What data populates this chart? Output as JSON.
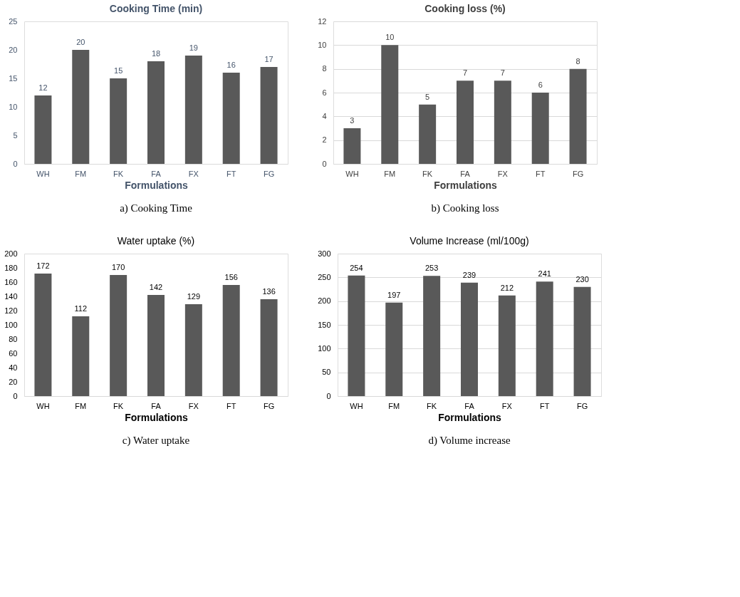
{
  "chart_data": [
    {
      "type": "bar",
      "title": "Cooking Time (min)",
      "xlabel": "Formulations",
      "categories": [
        "WH",
        "FM",
        "FK",
        "FA",
        "FX",
        "FT",
        "FG"
      ],
      "values": [
        12,
        20,
        15,
        18,
        19,
        16,
        17
      ],
      "color": "#595959",
      "ylim": [
        0,
        25
      ],
      "yticks": [
        0,
        5,
        10,
        15,
        20,
        25
      ],
      "grid": false,
      "data_labels": true,
      "annotations": [
        "a)    Cooking Time"
      ]
    },
    {
      "type": "bar",
      "title": "Cooking loss (%)",
      "xlabel": "Formulations",
      "categories": [
        "WH",
        "FM",
        "FK",
        "FA",
        "FX",
        "FT",
        "FG"
      ],
      "values": [
        3,
        10,
        5,
        7,
        7,
        6,
        8
      ],
      "color": "#595959",
      "ylim": [
        0,
        12
      ],
      "yticks": [
        0,
        2,
        4,
        6,
        8,
        10,
        12
      ],
      "grid": "y",
      "data_labels": true,
      "annotations": [
        "b) Cooking loss"
      ]
    },
    {
      "type": "bar",
      "title": "Water uptake (%)",
      "xlabel": "Formulations",
      "categories": [
        "WH",
        "FM",
        "FK",
        "FA",
        "FX",
        "FT",
        "FG"
      ],
      "values": [
        172,
        112,
        170,
        142,
        129,
        156,
        136
      ],
      "color": "#595959",
      "ylim": [
        0,
        200
      ],
      "yticks": [
        0,
        20,
        40,
        60,
        80,
        100,
        120,
        140,
        160,
        180,
        200
      ],
      "grid": false,
      "data_labels": true,
      "annotations": [
        "c) Water uptake"
      ]
    },
    {
      "type": "bar",
      "title": "Volume Increase (ml/100g)",
      "xlabel": "Formulations",
      "categories": [
        "WH",
        "FM",
        "FK",
        "FA",
        "FX",
        "FT",
        "FG"
      ],
      "values": [
        254,
        197,
        253,
        239,
        212,
        241,
        230
      ],
      "color": "#595959",
      "ylim": [
        0,
        300
      ],
      "yticks": [
        0,
        50,
        100,
        150,
        200,
        250,
        300
      ],
      "grid": "y",
      "data_labels": true,
      "annotations": [
        "d) Volume increase"
      ]
    }
  ]
}
